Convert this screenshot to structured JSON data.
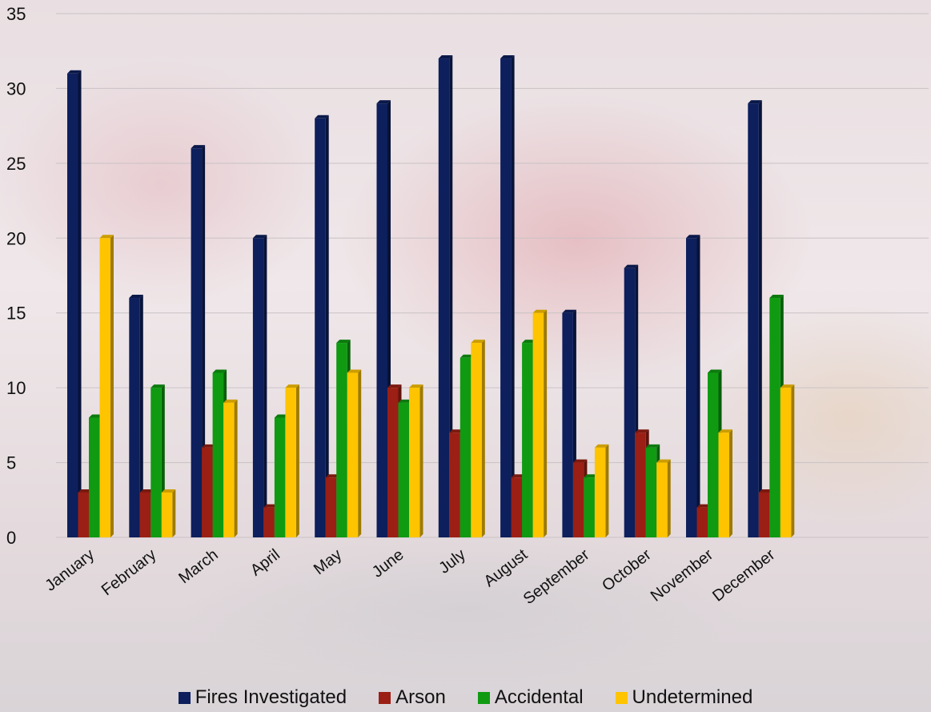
{
  "chart_data": {
    "type": "bar",
    "categories": [
      "January",
      "February",
      "March",
      "April",
      "May",
      "June",
      "July",
      "August",
      "September",
      "October",
      "November",
      "December"
    ],
    "series": [
      {
        "name": "Fires Investigated",
        "color": "#0d1f5c",
        "values": [
          31,
          16,
          26,
          20,
          28,
          29,
          32,
          32,
          15,
          18,
          20,
          29
        ]
      },
      {
        "name": "Arson",
        "color": "#9b1f14",
        "values": [
          3,
          3,
          6,
          2,
          4,
          10,
          7,
          4,
          5,
          7,
          2,
          3
        ]
      },
      {
        "name": "Accidental",
        "color": "#0f9a12",
        "values": [
          8,
          10,
          11,
          8,
          13,
          9,
          12,
          13,
          4,
          6,
          11,
          16
        ]
      },
      {
        "name": "Undetermined",
        "color": "#ffc400",
        "values": [
          20,
          3,
          9,
          10,
          11,
          10,
          13,
          15,
          6,
          5,
          7,
          10
        ]
      }
    ],
    "y_ticks": [
      "0",
      "5",
      "10",
      "15",
      "20",
      "25",
      "30",
      "35"
    ],
    "ylim": [
      0,
      35
    ],
    "grid": true,
    "legend_position": "bottom",
    "title": "",
    "xlabel": "",
    "ylabel": ""
  }
}
